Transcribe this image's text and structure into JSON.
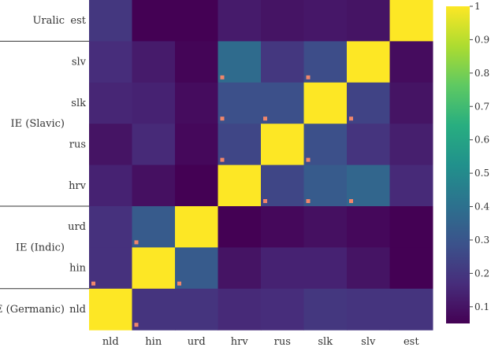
{
  "chart_data": {
    "type": "heatmap",
    "title": "",
    "xlabel": "",
    "ylabel": "",
    "x_categories": [
      "nld",
      "hin",
      "urd",
      "hrv",
      "rus",
      "slk",
      "slv",
      "est"
    ],
    "y_categories": [
      "est",
      "slv",
      "slk",
      "rus",
      "hrv",
      "urd",
      "hin",
      "nld"
    ],
    "groups": [
      {
        "label": "Uralic",
        "members": [
          "est"
        ]
      },
      {
        "label": "IE (Slavic)",
        "members": [
          "slv",
          "slk",
          "rus",
          "hrv"
        ]
      },
      {
        "label": "IE (Indic)",
        "members": [
          "urd",
          "hin"
        ]
      },
      {
        "label": "IE (Germanic)",
        "members": [
          "nld"
        ]
      }
    ],
    "values": [
      [
        0.2,
        0.03,
        0.02,
        0.12,
        0.1,
        0.11,
        0.1,
        1.0
      ],
      [
        0.17,
        0.12,
        0.06,
        0.38,
        0.2,
        0.27,
        1.0,
        0.08
      ],
      [
        0.15,
        0.14,
        0.08,
        0.28,
        0.28,
        1.0,
        0.24,
        0.1
      ],
      [
        0.1,
        0.16,
        0.07,
        0.25,
        1.0,
        0.28,
        0.19,
        0.13
      ],
      [
        0.14,
        0.09,
        0.03,
        1.0,
        0.25,
        0.32,
        0.36,
        0.16
      ],
      [
        0.18,
        0.32,
        1.0,
        0.03,
        0.07,
        0.09,
        0.07,
        0.04
      ],
      [
        0.18,
        1.0,
        0.32,
        0.1,
        0.14,
        0.14,
        0.1,
        0.05
      ],
      [
        1.0,
        0.19,
        0.19,
        0.16,
        0.17,
        0.2,
        0.19,
        0.19
      ]
    ],
    "markers": [
      {
        "x": "hrv",
        "y": "slv"
      },
      {
        "x": "slk",
        "y": "slv"
      },
      {
        "x": "hrv",
        "y": "slk"
      },
      {
        "x": "rus",
        "y": "slk"
      },
      {
        "x": "slv",
        "y": "slk"
      },
      {
        "x": "hrv",
        "y": "rus"
      },
      {
        "x": "slk",
        "y": "rus"
      },
      {
        "x": "rus",
        "y": "hrv"
      },
      {
        "x": "slk",
        "y": "hrv"
      },
      {
        "x": "slv",
        "y": "hrv"
      },
      {
        "x": "hin",
        "y": "urd"
      },
      {
        "x": "nld",
        "y": "hin"
      },
      {
        "x": "urd",
        "y": "hin"
      },
      {
        "x": "hin",
        "y": "nld"
      }
    ],
    "marker_color": "#f0866b",
    "colorscale": "viridis",
    "zlim": [
      0.05,
      1
    ],
    "colorbar_ticks": [
      "0.1",
      "0.2",
      "0.3",
      "0.4",
      "0.5",
      "0.6",
      "0.7",
      "0.8",
      "0.9",
      "1"
    ],
    "colorbar_tick_values": [
      0.1,
      0.2,
      0.3,
      0.4,
      0.5,
      0.6,
      0.7,
      0.8,
      0.9,
      1.0
    ]
  }
}
